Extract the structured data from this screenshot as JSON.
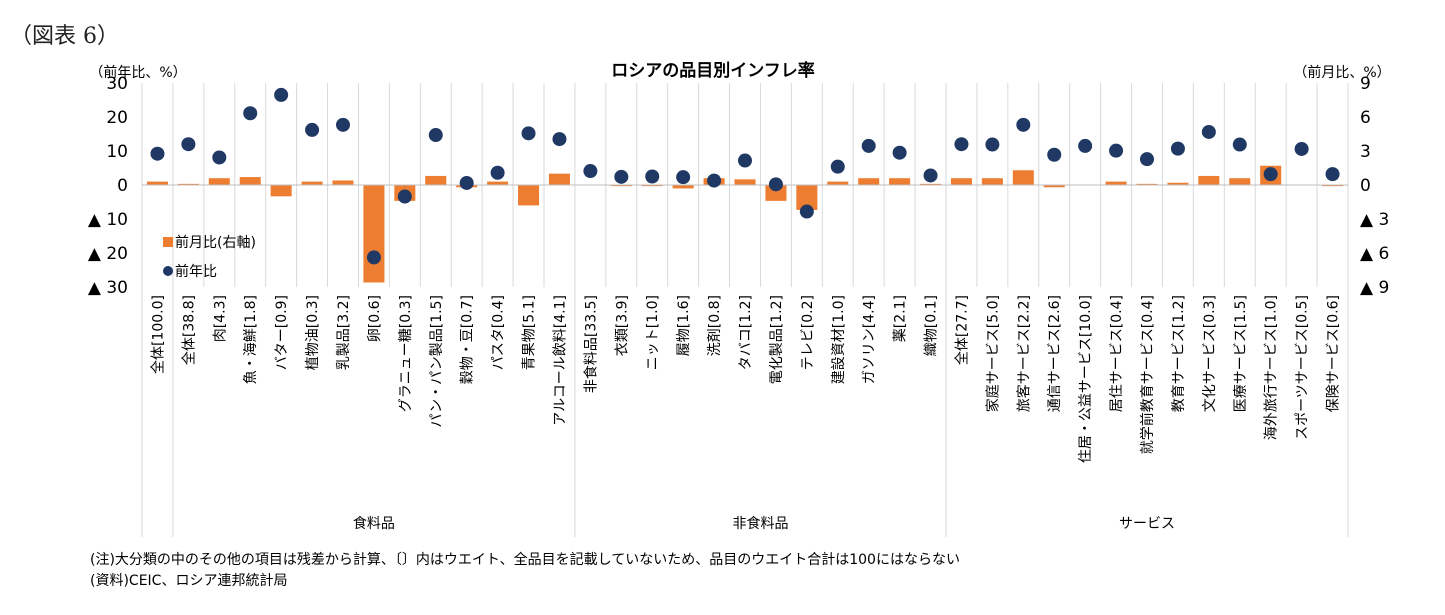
{
  "figure_label": "（図表 6）",
  "notes": [
    "(注)大分類の中のその他の項目は残差から計算、〔〕内はウエイト、全品目を記載していないため、品目のウエイト合計は100にはならない",
    "(資料)CEIC、ロシア連邦統計局"
  ],
  "chart_data": {
    "type": "bar",
    "title": "ロシアの品目別インフレ率",
    "left_axis_caption": "（前年比、%）",
    "right_axis_caption": "（前月比、%）",
    "ylim_left": [
      -30,
      30
    ],
    "ylim_right": [
      -9,
      9
    ],
    "yticks_left": [
      30,
      20,
      10,
      0,
      -10,
      -20,
      -30
    ],
    "yticks_left_labels": [
      "30",
      "20",
      "10",
      "0",
      "▲ 10",
      "▲ 20",
      "▲ 30"
    ],
    "yticks_right": [
      9,
      6,
      3,
      0,
      -3,
      -6,
      -9
    ],
    "yticks_right_labels": [
      "9",
      "6",
      "3",
      "0",
      "▲ 3",
      "▲ 6",
      "▲ 9"
    ],
    "bar_color": "#ED7D31",
    "dot_color": "#1F3864",
    "categories": [
      "全体[100.0]",
      "全体[38.8]",
      "肉[4.3]",
      "魚・海鮮[1.8]",
      "バター[0.9]",
      "植物油[0.3]",
      "乳製品[3.2]",
      "卵[0.6]",
      "グラニュー糖[0.3]",
      "パン・パン製品[1.5]",
      "穀物・豆[0.7]",
      "パスタ[0.4]",
      "青果物[5.1]",
      "アルコール飲料[4.1]",
      "非食料品[33.5]",
      "衣類[3.9]",
      "ニット[1.0]",
      "履物[1.6]",
      "洗剤[0.8]",
      "タバコ[1.2]",
      "電化製品[1.2]",
      "テレビ[0.2]",
      "建設資材[1.0]",
      "ガソリン[4.4]",
      "薬[2.1]",
      "織物[0.1]",
      "全体[27.7]",
      "家庭サービス[5.0]",
      "旅客サービス[2.2]",
      "通信サービス[2.6]",
      "住居・公益サービス[10.0]",
      "居住サービス[0.4]",
      "就学前教育サービス[0.4]",
      "教育サービス[1.2]",
      "文化サービス[0.3]",
      "医療サービス[1.5]",
      "海外旅行サービス[1.0]",
      "スポーツサービス[0.5]",
      "保険サービス[0.6]"
    ],
    "groups": [
      {
        "label": "食料品",
        "start": 1,
        "end": 13
      },
      {
        "label": "非食料品",
        "start": 14,
        "end": 25
      },
      {
        "label": "サービス",
        "start": 26,
        "end": 38
      }
    ],
    "series": [
      {
        "name": "前月比(右軸)",
        "type": "bar",
        "axis": "right",
        "values": [
          0.3,
          0.1,
          0.6,
          0.7,
          -1.0,
          0.3,
          0.4,
          -8.6,
          -1.4,
          0.8,
          -0.2,
          0.3,
          -1.8,
          1.0,
          0.0,
          -0.1,
          -0.1,
          -0.3,
          0.6,
          0.5,
          -1.4,
          -2.2,
          0.3,
          0.6,
          0.6,
          0.1,
          0.6,
          0.6,
          1.3,
          -0.2,
          0.0,
          0.3,
          0.1,
          0.2,
          0.8,
          0.6,
          1.7,
          0.0,
          -0.1
        ]
      },
      {
        "name": "前年比",
        "type": "scatter",
        "axis": "left",
        "values": [
          9.2,
          12.0,
          8.1,
          21.1,
          26.5,
          16.2,
          17.7,
          -21.3,
          -3.4,
          14.7,
          0.6,
          3.6,
          15.2,
          13.5,
          4.1,
          2.4,
          2.5,
          2.3,
          1.3,
          7.2,
          0.2,
          -7.8,
          5.4,
          11.5,
          9.5,
          2.8,
          12.0,
          11.9,
          17.7,
          8.9,
          11.5,
          10.1,
          7.6,
          10.7,
          15.6,
          11.9,
          3.2,
          10.6,
          3.2
        ]
      }
    ],
    "legend": [
      "前月比(右軸)",
      "前年比"
    ],
    "legend_position": "left-lower-inside"
  }
}
